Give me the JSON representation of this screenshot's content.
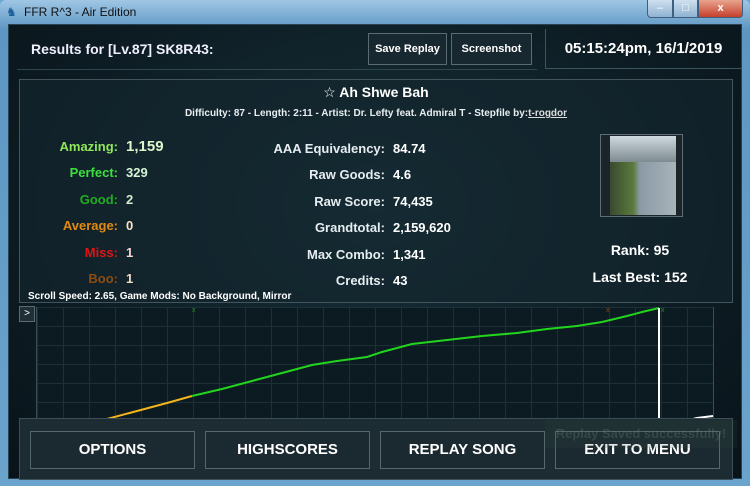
{
  "window": {
    "title": "FFR R^3 - Air Edition",
    "minimize": "–",
    "maximize": "□",
    "close": "x"
  },
  "header": {
    "title": "Results for [Lv.87] SK8R43:",
    "save_replay": "Save Replay",
    "screenshot": "Screenshot",
    "datetime": "05:15:24pm, 16/1/2019"
  },
  "song": {
    "title": "Ah Shwe Bah",
    "meta_prefix": "Difficulty: 87 - Length: 2:11 - Artist: Dr. Lefty feat. Admiral T - Stepfile by:",
    "stepfile_author": "t-rogdor",
    "favorite_icon": "star-outline-icon"
  },
  "judgements": [
    {
      "label": "Amazing:",
      "value": "1,159",
      "color": "#8fe85a",
      "value_color": "#dff5cc"
    },
    {
      "label": "Perfect:",
      "value": "329",
      "color": "#3de03d",
      "value_color": "#d5f5d5"
    },
    {
      "label": "Good:",
      "value": "2",
      "color": "#1fae1f",
      "value_color": "#cfeecf"
    },
    {
      "label": "Average:",
      "value": "0",
      "color": "#e08a12",
      "value_color": "#f7e3c6"
    },
    {
      "label": "Miss:",
      "value": "1",
      "color": "#e01414",
      "value_color": "#f6d6d6"
    },
    {
      "label": "Boo:",
      "value": "1",
      "color": "#8a4d12",
      "value_color": "#efdcc8"
    }
  ],
  "stats": [
    {
      "label": "AAA Equivalency:",
      "value": "84.74"
    },
    {
      "label": "Raw Goods:",
      "value": "4.6"
    },
    {
      "label": "Raw Score:",
      "value": "74,435"
    },
    {
      "label": "Grandtotal:",
      "value": "2,159,620"
    },
    {
      "label": "Max Combo:",
      "value": "1,341"
    },
    {
      "label": "Credits:",
      "value": "43"
    }
  ],
  "rank": "Rank: 95",
  "last_best": "Last Best: 152",
  "mods": "Scroll Speed: 2.65, Game Mods: No Background, Mirror",
  "graph": {
    "expand_label": ">",
    "colors": {
      "early": "#f2b51c",
      "main": "#22d41e",
      "end": "#ffffff"
    }
  },
  "buttons": {
    "options": "OPTIONS",
    "highscores": "HIGHSCORES",
    "replay": "REPLAY SONG",
    "exit": "EXIT TO MENU"
  },
  "toast": "Replay Saved successfully!"
}
